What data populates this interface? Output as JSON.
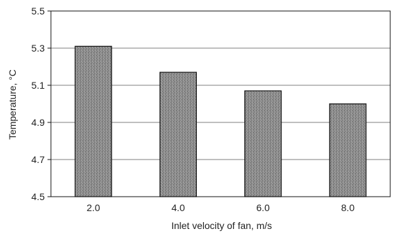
{
  "chart_data": {
    "type": "bar",
    "title": "",
    "xlabel": "Inlet velocity of fan,  m/s",
    "ylabel": "Temperature,  °C",
    "categories": [
      "2.0",
      "4.0",
      "6.0",
      "8.0"
    ],
    "values": [
      5.31,
      5.17,
      5.07,
      5.0
    ],
    "ylim": [
      4.5,
      5.5
    ],
    "yticks": [
      "4.5",
      "4.7",
      "4.9",
      "5.1",
      "5.3",
      "5.5"
    ],
    "ytick_values": [
      4.5,
      4.7,
      4.9,
      5.1,
      5.3,
      5.5
    ],
    "grid": true,
    "legend": "none",
    "colors": {
      "bar_fill": "#8e8e8e",
      "bar_stroke": "#111111",
      "grid": "#555555",
      "axis": "#111111"
    }
  }
}
